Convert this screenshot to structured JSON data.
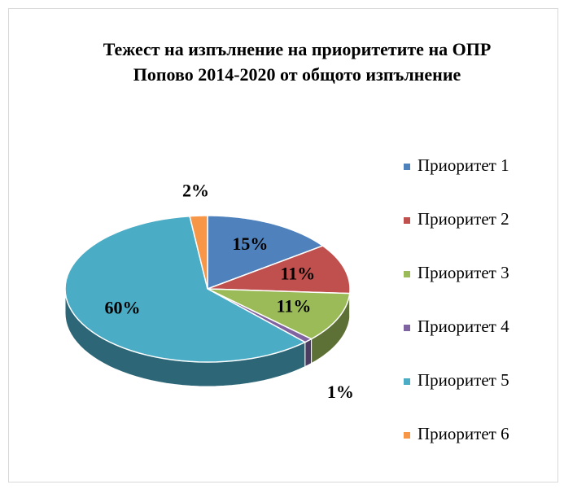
{
  "chart_data": {
    "type": "pie3d",
    "title": "Тежест на изпълнение на приоритетите  на ОПР Попово 2014-2020 от общото изпълнение",
    "categories": [
      "Приоритет 1",
      "Приоритет 2",
      "Приоритет 3",
      "Приоритет 4",
      "Приоритет 5",
      "Приоритет 6"
    ],
    "values": [
      15,
      11,
      11,
      1,
      60,
      2
    ],
    "value_labels": [
      "15%",
      "11%",
      "11%",
      "1%",
      "60%",
      "2%"
    ],
    "colors": [
      "#4f81bd",
      "#c0504d",
      "#9bbb59",
      "#8064a2",
      "#4bacc6",
      "#f79646"
    ],
    "legend": "right"
  }
}
